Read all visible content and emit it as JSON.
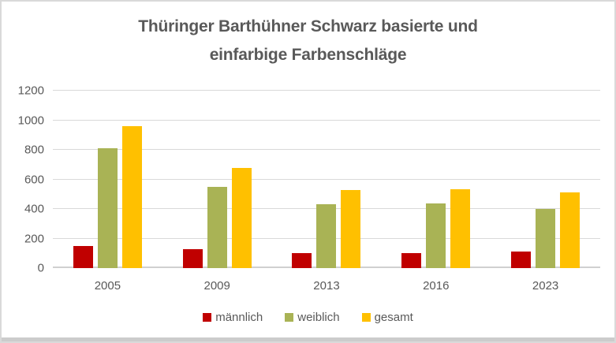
{
  "title": {
    "line1": "Thüringer Barthühner Schwarz basierte und",
    "line2": "einfarbige Farbenschläge"
  },
  "chart_data": {
    "type": "bar",
    "title": "Thüringer Barthühner Schwarz basierte und einfarbige Farbenschläge",
    "categories": [
      "2005",
      "2009",
      "2013",
      "2016",
      "2023"
    ],
    "series": [
      {
        "name": "männlich",
        "color": "#C00000",
        "values": [
          150,
          130,
          100,
          100,
          110
        ]
      },
      {
        "name": "weiblich",
        "color": "#A9B355",
        "values": [
          810,
          550,
          430,
          435,
          400
        ]
      },
      {
        "name": "gesamt",
        "color": "#FFC000",
        "values": [
          960,
          680,
          530,
          535,
          510
        ]
      }
    ],
    "xlabel": "",
    "ylabel": "",
    "ylim": [
      0,
      1200
    ],
    "yticks": [
      0,
      200,
      400,
      600,
      800,
      1000,
      1200
    ],
    "grid": true,
    "legend_position": "bottom"
  },
  "colors": {
    "title_text": "#595959",
    "axis_text": "#595959",
    "gridline": "#D9D9D9",
    "frame_border": "#D9D9D9"
  }
}
